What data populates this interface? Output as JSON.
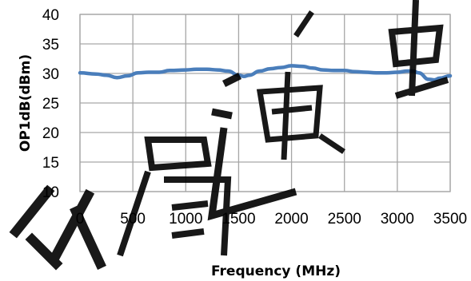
{
  "chart_data": {
    "type": "line",
    "title": "",
    "xlabel": "Frequency (MHz)",
    "ylabel": "OP1dB(dBm)",
    "xlim": [
      0,
      3500
    ],
    "ylim": [
      10,
      40
    ],
    "x_ticks": [
      "0",
      "500",
      "1000",
      "1500",
      "2000",
      "2500",
      "3000",
      "3500"
    ],
    "y_ticks": [
      "10",
      "15",
      "20",
      "25",
      "30",
      "35",
      "40"
    ],
    "grid": true,
    "legend": "none",
    "series": [
      {
        "color": "#4a7ebb",
        "x": [
          0,
          150,
          250,
          350,
          450,
          550,
          650,
          750,
          850,
          1000,
          1100,
          1200,
          1300,
          1400,
          1500,
          1550,
          1600,
          1700,
          1800,
          1900,
          2000,
          2100,
          2200,
          2300,
          2400,
          2500,
          2600,
          2700,
          2800,
          2900,
          3000,
          3100,
          3150,
          3200,
          3300,
          3350,
          3400,
          3500
        ],
        "y": [
          30.1,
          29.9,
          29.7,
          29.3,
          29.6,
          30.1,
          30.2,
          30.2,
          30.5,
          30.6,
          30.7,
          30.7,
          30.6,
          30.4,
          29.7,
          29.5,
          29.7,
          30.4,
          30.8,
          31.0,
          31.3,
          31.2,
          30.9,
          30.6,
          30.5,
          30.5,
          30.3,
          30.2,
          30.1,
          30.1,
          30.2,
          30.4,
          30.4,
          30.1,
          29.0,
          28.9,
          29.2,
          29.6
        ]
      }
    ]
  },
  "watermark": {
    "text": "苏州启通电子"
  }
}
